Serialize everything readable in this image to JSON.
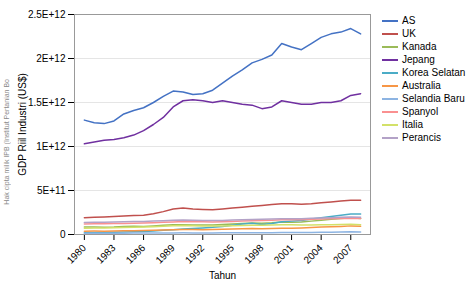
{
  "chart_data": {
    "type": "line",
    "xlabel": "Tahun",
    "ylabel": "GDP Riil Industri (US$)",
    "annotations": [
      "Hak cipta milik IPB (Institut Pertanian Bo"
    ],
    "x": [
      1980,
      1981,
      1982,
      1983,
      1984,
      1985,
      1986,
      1987,
      1988,
      1989,
      1990,
      1991,
      1992,
      1993,
      1994,
      1995,
      1996,
      1997,
      1998,
      1999,
      2000,
      2001,
      2002,
      2003,
      2004,
      2005,
      2006,
      2007,
      2008
    ],
    "series": [
      {
        "name": "AS",
        "color": "#4472c4",
        "values": [
          1300000000000.0,
          1270000000000.0,
          1260000000000.0,
          1290000000000.0,
          1370000000000.0,
          1410000000000.0,
          1440000000000.0,
          1500000000000.0,
          1570000000000.0,
          1630000000000.0,
          1620000000000.0,
          1590000000000.0,
          1600000000000.0,
          1640000000000.0,
          1720000000000.0,
          1800000000000.0,
          1870000000000.0,
          1950000000000.0,
          1990000000000.0,
          2040000000000.0,
          2170000000000.0,
          2130000000000.0,
          2100000000000.0,
          2170000000000.0,
          2240000000000.0,
          2280000000000.0,
          2300000000000.0,
          2340000000000.0,
          2280000000000.0
        ]
      },
      {
        "name": "UK",
        "color": "#c0504d",
        "values": [
          190000000000.0,
          195000000000.0,
          200000000000.0,
          205000000000.0,
          210000000000.0,
          215000000000.0,
          220000000000.0,
          235000000000.0,
          260000000000.0,
          290000000000.0,
          300000000000.0,
          290000000000.0,
          285000000000.0,
          280000000000.0,
          290000000000.0,
          300000000000.0,
          310000000000.0,
          320000000000.0,
          330000000000.0,
          340000000000.0,
          350000000000.0,
          350000000000.0,
          345000000000.0,
          350000000000.0,
          360000000000.0,
          370000000000.0,
          380000000000.0,
          390000000000.0,
          390000000000.0
        ]
      },
      {
        "name": "Kanada",
        "color": "#9bbb59",
        "values": [
          85000000000.0,
          85000000000.0,
          82000000000.0,
          85000000000.0,
          92000000000.0,
          93000000000.0,
          92000000000.0,
          98000000000.0,
          105000000000.0,
          110000000000.0,
          112000000000.0,
          108000000000.0,
          107000000000.0,
          108000000000.0,
          115000000000.0,
          120000000000.0,
          125000000000.0,
          130000000000.0,
          128000000000.0,
          133000000000.0,
          142000000000.0,
          138000000000.0,
          142000000000.0,
          152000000000.0,
          162000000000.0,
          172000000000.0,
          182000000000.0,
          190000000000.0,
          182000000000.0
        ]
      },
      {
        "name": "Jepang",
        "color": "#7030a0",
        "values": [
          1030000000000.0,
          1050000000000.0,
          1070000000000.0,
          1080000000000.0,
          1100000000000.0,
          1130000000000.0,
          1180000000000.0,
          1250000000000.0,
          1330000000000.0,
          1450000000000.0,
          1520000000000.0,
          1530000000000.0,
          1520000000000.0,
          1500000000000.0,
          1520000000000.0,
          1500000000000.0,
          1480000000000.0,
          1470000000000.0,
          1430000000000.0,
          1450000000000.0,
          1520000000000.0,
          1500000000000.0,
          1480000000000.0,
          1480000000000.0,
          1500000000000.0,
          1500000000000.0,
          1520000000000.0,
          1580000000000.0,
          1600000000000.0
        ]
      },
      {
        "name": "Korea Selatan",
        "color": "#4bacc6",
        "values": [
          20000000000.0,
          22000000000.0,
          24000000000.0,
          26000000000.0,
          29000000000.0,
          32000000000.0,
          35000000000.0,
          40000000000.0,
          48000000000.0,
          55000000000.0,
          62000000000.0,
          68000000000.0,
          75000000000.0,
          82000000000.0,
          92000000000.0,
          105000000000.0,
          118000000000.0,
          128000000000.0,
          115000000000.0,
          125000000000.0,
          145000000000.0,
          152000000000.0,
          160000000000.0,
          175000000000.0,
          190000000000.0,
          205000000000.0,
          218000000000.0,
          232000000000.0,
          232000000000.0
        ]
      },
      {
        "name": "Australia",
        "color": "#f79646",
        "values": [
          38000000000.0,
          39000000000.0,
          38000000000.0,
          40000000000.0,
          43000000000.0,
          44000000000.0,
          45000000000.0,
          48000000000.0,
          52000000000.0,
          55000000000.0,
          57000000000.0,
          56000000000.0,
          55000000000.0,
          57000000000.0,
          60000000000.0,
          63000000000.0,
          65000000000.0,
          67000000000.0,
          66000000000.0,
          68000000000.0,
          72000000000.0,
          72000000000.0,
          75000000000.0,
          80000000000.0,
          85000000000.0,
          88000000000.0,
          92000000000.0,
          98000000000.0,
          95000000000.0
        ]
      },
      {
        "name": "Selandia Baru",
        "color": "#8db4e2",
        "values": [
          14000000000.0,
          14500000000.0,
          14800000000.0,
          15000000000.0,
          15500000000.0,
          15800000000.0,
          16000000000.0,
          16500000000.0,
          17200000000.0,
          18000000000.0,
          18500000000.0,
          18000000000.0,
          17800000000.0,
          18000000000.0,
          19000000000.0,
          20000000000.0,
          20500000000.0,
          21000000000.0,
          20500000000.0,
          21000000000.0,
          22000000000.0,
          22000000000.0,
          22500000000.0,
          23000000000.0,
          25000000000.0,
          26500000000.0,
          28000000000.0,
          30000000000.0,
          29000000000.0
        ]
      },
      {
        "name": "Spanyol",
        "color": "#fa9090",
        "values": [
          120000000000.0,
          122000000000.0,
          123000000000.0,
          124000000000.0,
          126000000000.0,
          128000000000.0,
          130000000000.0,
          133000000000.0,
          138000000000.0,
          143000000000.0,
          148000000000.0,
          146000000000.0,
          144000000000.0,
          142000000000.0,
          144000000000.0,
          148000000000.0,
          152000000000.0,
          155000000000.0,
          158000000000.0,
          162000000000.0,
          167000000000.0,
          167000000000.0,
          167000000000.0,
          172000000000.0,
          175000000000.0,
          178000000000.0,
          182000000000.0,
          186000000000.0,
          182000000000.0
        ]
      },
      {
        "name": "Italia",
        "color": "#d3e169",
        "values": [
          70000000000.0,
          73000000000.0,
          75000000000.0,
          77000000000.0,
          80000000000.0,
          82000000000.0,
          85000000000.0,
          89000000000.0,
          95000000000.0,
          100000000000.0,
          103000000000.0,
          100000000000.0,
          98000000000.0,
          96000000000.0,
          97000000000.0,
          100000000000.0,
          102000000000.0,
          105000000000.0,
          106000000000.0,
          108000000000.0,
          112000000000.0,
          110000000000.0,
          108000000000.0,
          108000000000.0,
          110000000000.0,
          112000000000.0,
          114000000000.0,
          116000000000.0,
          112000000000.0
        ]
      },
      {
        "name": "Perancis",
        "color": "#b3a2c7",
        "values": [
          135000000000.0,
          138000000000.0,
          140000000000.0,
          142000000000.0,
          145000000000.0,
          147000000000.0,
          149000000000.0,
          152000000000.0,
          157000000000.0,
          162000000000.0,
          165000000000.0,
          162000000000.0,
          160000000000.0,
          158000000000.0,
          160000000000.0,
          164000000000.0,
          168000000000.0,
          171000000000.0,
          173000000000.0,
          176000000000.0,
          180000000000.0,
          180000000000.0,
          180000000000.0,
          184000000000.0,
          188000000000.0,
          191000000000.0,
          195000000000.0,
          199000000000.0,
          195000000000.0
        ]
      }
    ],
    "xlim": [
      1979,
      2009
    ],
    "xticks": [
      1980,
      1983,
      1986,
      1989,
      1992,
      1995,
      1998,
      2001,
      2004,
      2007
    ],
    "ylim": [
      0,
      2500000000000.0
    ],
    "yticks": [
      0,
      {
        "value": 500000000000.0,
        "label": "5E+11"
      },
      {
        "value": 1000000000000.0,
        "label": "1E+12"
      },
      {
        "value": 1500000000000.0,
        "label": "1.5E+12"
      },
      {
        "value": 2000000000000.0,
        "label": "2E+12"
      },
      {
        "value": 2500000000000.0,
        "label": "2.5E+12"
      }
    ],
    "grid": "y",
    "legend": "right"
  }
}
